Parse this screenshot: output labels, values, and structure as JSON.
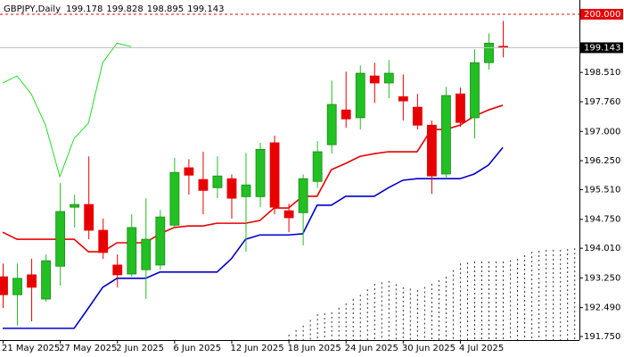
{
  "chart_data": {
    "type": "candlestick",
    "title": "GBPJPY,Daily",
    "categories": [
      "21 May 2025",
      null,
      null,
      null,
      "27 May 2025",
      null,
      null,
      null,
      "2 Jun 2025",
      null,
      null,
      null,
      "6 Jun 2025",
      null,
      null,
      null,
      "12 Jun 2025",
      null,
      null,
      null,
      "18 Jun 2025",
      null,
      null,
      null,
      "24 Jun 2025",
      null,
      null,
      null,
      "30 Jun 2025",
      null,
      null,
      null,
      "4 Jul 2025",
      null,
      null,
      null,
      null,
      null,
      null,
      null,
      null
    ],
    "open": [
      193.28,
      192.82,
      193.33,
      192.71,
      193.55,
      195.06,
      195.13,
      194.47,
      193.58,
      193.35,
      193.46,
      193.58,
      194.6,
      196.07,
      195.77,
      195.56,
      195.79,
      195.33,
      195.33,
      196.71,
      194.97,
      194.92,
      195.72,
      196.66,
      197.55,
      197.35,
      198.42,
      198.24,
      197.89,
      197.62,
      197.16,
      195.91,
      197.96,
      197.35,
      198.76,
      199.178,
      null,
      null,
      null,
      null,
      null
    ],
    "high": [
      193.62,
      193.62,
      193.74,
      193.85,
      195.68,
      195.38,
      196.36,
      194.77,
      193.85,
      194.88,
      195.29,
      194.99,
      196.32,
      196.29,
      196.48,
      196.36,
      195.9,
      196.45,
      196.71,
      196.89,
      195.15,
      195.9,
      196.75,
      198.3,
      198.53,
      198.69,
      198.76,
      198.83,
      198.46,
      197.96,
      197.28,
      198.14,
      198.12,
      199.1,
      199.51,
      199.828,
      null,
      null,
      null,
      null,
      null
    ],
    "low": [
      192.48,
      192.03,
      192.14,
      192.64,
      193.05,
      194.54,
      194.24,
      193.74,
      193.01,
      193.28,
      192.71,
      193.46,
      194.54,
      195.38,
      194.88,
      195.29,
      194.77,
      193.92,
      195.06,
      194.88,
      194.42,
      194.08,
      195.56,
      196.43,
      197.09,
      197.05,
      197.73,
      197.85,
      197.28,
      197.05,
      195.4,
      195.79,
      197.12,
      196.82,
      198.58,
      198.895,
      null,
      null,
      null,
      null,
      null
    ],
    "close": [
      192.82,
      193.24,
      193.01,
      193.69,
      194.95,
      195.13,
      194.47,
      193.9,
      193.33,
      194.54,
      194.24,
      194.81,
      195.95,
      195.88,
      195.49,
      195.86,
      195.29,
      195.63,
      196.54,
      195.06,
      194.79,
      195.79,
      196.48,
      197.69,
      197.32,
      198.49,
      198.24,
      198.49,
      197.78,
      197.16,
      195.86,
      197.92,
      197.23,
      198.76,
      199.26,
      199.143,
      null,
      null,
      null,
      null,
      null
    ],
    "up_color": "#22c022",
    "down_color": "#e80000",
    "ylim": [
      191.66,
      200.25
    ],
    "yticks": [
      {
        "value": 198.51,
        "label": "198.510"
      },
      {
        "value": 197.76,
        "label": "197.760"
      },
      {
        "value": 197,
        "label": "197.000"
      },
      {
        "value": 196.25,
        "label": "196.250"
      },
      {
        "value": 195.51,
        "label": "195.510"
      },
      {
        "value": 194.75,
        "label": "194.750"
      },
      {
        "value": 194.01,
        "label": "194.010"
      },
      {
        "value": 193.25,
        "label": "193.250"
      },
      {
        "value": 192.49,
        "label": "192.490"
      },
      {
        "value": 191.75,
        "label": "191.750"
      }
    ],
    "lines": [
      {
        "color": "#e80000",
        "values": [
          194.42,
          194.24,
          194.24,
          194.24,
          194.24,
          194.24,
          193.92,
          193.92,
          194.15,
          194.15,
          194.15,
          194.38,
          194.54,
          194.58,
          194.58,
          194.65,
          194.65,
          194.65,
          194.72,
          195.04,
          195.04,
          195.34,
          195.34,
          196.02,
          196.18,
          196.36,
          196.43,
          196.48,
          196.48,
          196.48,
          197.05,
          197.05,
          197.16,
          197.39,
          197.55,
          197.67,
          null,
          null,
          null,
          null,
          null
        ]
      },
      {
        "color": "#0000cc",
        "values": [
          191.96,
          191.96,
          191.96,
          191.96,
          191.96,
          191.96,
          192.48,
          193.01,
          193.24,
          193.24,
          193.24,
          193.4,
          193.4,
          193.4,
          193.4,
          193.4,
          193.74,
          194.24,
          194.35,
          194.35,
          194.35,
          194.38,
          195.11,
          195.11,
          195.34,
          195.34,
          195.34,
          195.56,
          195.75,
          195.79,
          195.79,
          195.79,
          195.79,
          195.91,
          196.14,
          196.59,
          null,
          null,
          null,
          null,
          null
        ]
      },
      {
        "color": "#22dd22",
        "values": [
          198.24,
          198.42,
          197.96,
          197.16,
          195.84,
          196.82,
          197.21,
          198.76,
          199.26,
          199.17,
          null,
          null,
          null,
          null,
          null,
          null,
          null,
          null,
          null,
          null,
          null,
          null,
          null,
          null,
          null,
          null,
          null,
          null,
          null,
          null,
          null,
          null,
          null,
          null,
          null,
          null,
          null,
          null,
          null,
          null,
          null
        ]
      }
    ],
    "cloud": {
      "color": "#333333",
      "values": [
        null,
        null,
        null,
        null,
        null,
        null,
        null,
        null,
        null,
        null,
        null,
        null,
        null,
        null,
        null,
        null,
        null,
        null,
        null,
        null,
        191.8,
        192.03,
        192.32,
        192.37,
        192.6,
        192.82,
        193.1,
        193.17,
        193.01,
        192.94,
        193.1,
        193.28,
        193.62,
        193.67,
        193.67,
        193.67,
        193.74,
        193.92,
        193.97,
        193.97,
        194.01
      ]
    },
    "hline": {
      "value": 200,
      "label": "200.000",
      "color": "#e80000"
    }
  }
}
